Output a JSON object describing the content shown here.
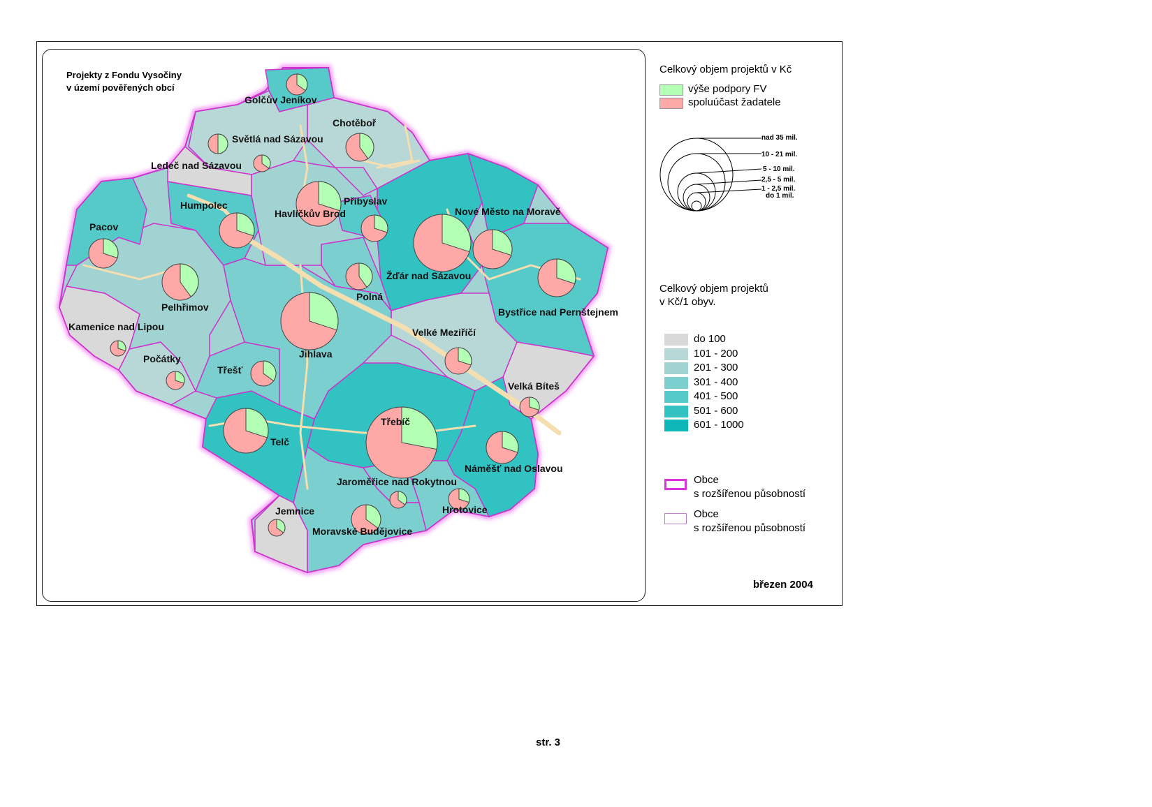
{
  "map": {
    "title_line1": "Projekty z Fondu Vysočiny",
    "title_line2": "v území pověřených obcí",
    "date": "březen 2004",
    "towns": [
      {
        "name": "Golčův Jeníkov"
      },
      {
        "name": "Chotěboř"
      },
      {
        "name": "Světlá nad Sázavou"
      },
      {
        "name": "Ledeč nad Sázavou"
      },
      {
        "name": "Humpolec"
      },
      {
        "name": "Havlíčkův Brod"
      },
      {
        "name": "Přibyslav"
      },
      {
        "name": "Nové Město na Moravě"
      },
      {
        "name": "Pacov"
      },
      {
        "name": "Žďár nad Sázavou"
      },
      {
        "name": "Polná"
      },
      {
        "name": "Pelhřimov"
      },
      {
        "name": "Bystřice nad Pernštejnem"
      },
      {
        "name": "Kamenice nad Lipou"
      },
      {
        "name": "Velké Meziříčí"
      },
      {
        "name": "Jihlava"
      },
      {
        "name": "Počátky"
      },
      {
        "name": "Třešť"
      },
      {
        "name": "Velká Bíteš"
      },
      {
        "name": "Třebíč"
      },
      {
        "name": "Telč"
      },
      {
        "name": "Náměšť nad Oslavou"
      },
      {
        "name": "Jaroměřice nad Rokytnou"
      },
      {
        "name": "Hrotovice"
      },
      {
        "name": "Jemnice"
      },
      {
        "name": "Moravské Budějovice"
      }
    ]
  },
  "legend": {
    "pie_title": "Celkový objem projektů v Kč",
    "pie_items": [
      {
        "label": "výše podpory FV",
        "color": "#b3ffb3"
      },
      {
        "label": "spoluúčast žadatele",
        "color": "#ffa8a8"
      }
    ],
    "size_classes": [
      "nad 35 mil.",
      "10 - 21 mil.",
      "5 - 10 mil.",
      "2,5 - 5 mil.",
      "1 - 2,5 mil.",
      "do 1 mil."
    ],
    "choropleth_title_line1": "Celkový objem projektů",
    "choropleth_title_line2": "v Kč/1 obyv.",
    "choropleth_classes": [
      {
        "label": "do  100",
        "color": "#d9d9d9"
      },
      {
        "label": "101 - 200",
        "color": "#b8d8d8"
      },
      {
        "label": "201 - 300",
        "color": "#a2d3d3"
      },
      {
        "label": "301 - 400",
        "color": "#7ccfcf"
      },
      {
        "label": "401 - 500",
        "color": "#56c9c9"
      },
      {
        "label": "501 - 600",
        "color": "#33c2c2"
      },
      {
        "label": "601 - 1000",
        "color": "#0eb8b8"
      }
    ],
    "boundary_items": [
      {
        "line1": "Obce",
        "line2": "s rozšířenou působností",
        "color": "#dd33dd"
      },
      {
        "line1": "Obce",
        "line2": "s rozšířenou působností",
        "color": "#c080d0"
      }
    ]
  },
  "footer": {
    "page_label": "str. 3"
  }
}
